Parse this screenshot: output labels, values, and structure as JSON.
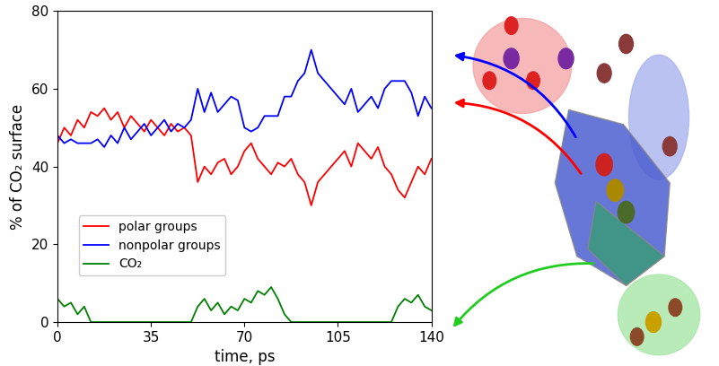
{
  "chart_data": {
    "type": "line",
    "x_label": "time, ps",
    "y_label": "% of CO₂ surface",
    "x": [
      0,
      2.5,
      5,
      7.5,
      10,
      12.5,
      15,
      17.5,
      20,
      22.5,
      25,
      27.5,
      30,
      32.5,
      35,
      37.5,
      40,
      42.5,
      45,
      47.5,
      50,
      52.5,
      55,
      57.5,
      60,
      62.5,
      65,
      67.5,
      70,
      72.5,
      75,
      77.5,
      80,
      82.5,
      85,
      87.5,
      90,
      92.5,
      95,
      97.5,
      100,
      102.5,
      105,
      107.5,
      110,
      112.5,
      115,
      117.5,
      120,
      122.5,
      125,
      127.5,
      130,
      132.5,
      135,
      137.5,
      140
    ],
    "series": [
      {
        "name": "polar groups",
        "color": "#ff0000",
        "values": [
          46,
          50,
          48,
          52,
          50,
          54,
          53,
          55,
          52,
          54,
          50,
          53,
          51,
          49,
          52,
          50,
          48,
          51,
          49,
          50,
          48,
          36,
          40,
          38,
          41,
          42,
          38,
          40,
          44,
          46,
          42,
          40,
          38,
          41,
          40,
          42,
          38,
          36,
          30,
          36,
          38,
          40,
          42,
          44,
          40,
          46,
          44,
          42,
          45,
          40,
          38,
          34,
          32,
          36,
          40,
          38,
          42
        ]
      },
      {
        "name": "nonpolar groups",
        "color": "#0000ff",
        "values": [
          48,
          46,
          47,
          46,
          46,
          46,
          47,
          45,
          48,
          46,
          50,
          47,
          49,
          51,
          48,
          50,
          52,
          49,
          51,
          50,
          52,
          60,
          54,
          59,
          54,
          56,
          58,
          57,
          50,
          49,
          50,
          53,
          53,
          53,
          58,
          58,
          62,
          64,
          70,
          64,
          62,
          60,
          58,
          56,
          60,
          54,
          56,
          58,
          55,
          60,
          62,
          62,
          62,
          59,
          53,
          58,
          55
        ]
      },
      {
        "name": "CO₂",
        "color": "#008000",
        "values": [
          6,
          4,
          5,
          2,
          4,
          0,
          0,
          0,
          0,
          0,
          0,
          0,
          0,
          0,
          0,
          0,
          0,
          0,
          0,
          0,
          0,
          4,
          6,
          3,
          5,
          2,
          4,
          3,
          6,
          5,
          8,
          7,
          9,
          6,
          2,
          0,
          0,
          0,
          0,
          0,
          0,
          0,
          0,
          0,
          0,
          0,
          0,
          0,
          0,
          0,
          0,
          4,
          6,
          5,
          7,
          4,
          3
        ]
      }
    ],
    "xlim": [
      0,
      140
    ],
    "xticks": [
      0,
      35,
      70,
      105,
      140
    ],
    "ylim": [
      0,
      80
    ],
    "yticks": [
      0,
      20,
      40,
      60,
      80
    ],
    "legend": "lower left"
  }
}
